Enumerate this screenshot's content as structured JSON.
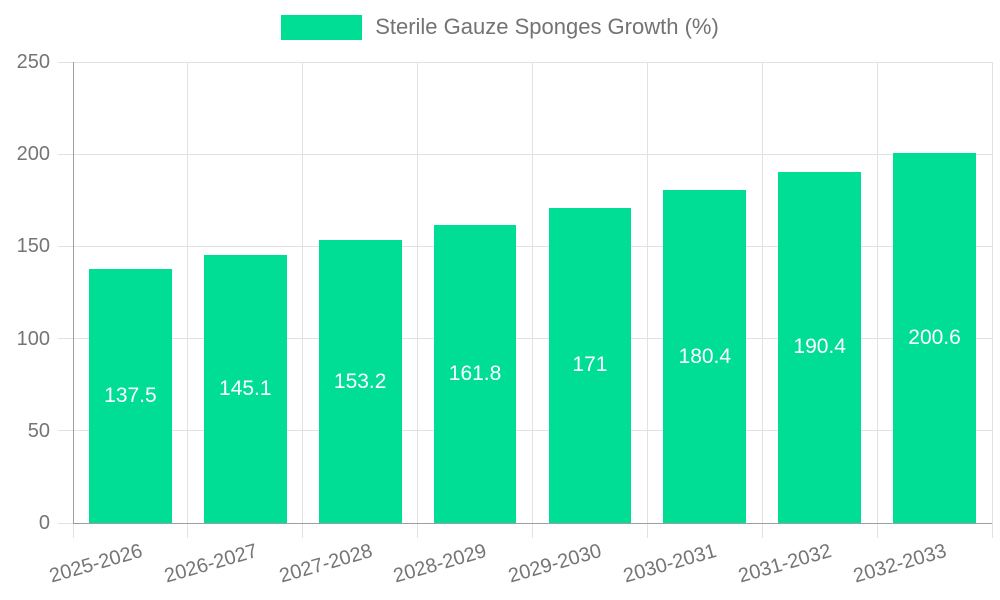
{
  "legend": {
    "label": "Sterile Gauze Sponges Growth (%)"
  },
  "chart_data": {
    "type": "bar",
    "title": "Sterile Gauze Sponges Growth (%)",
    "categories": [
      "2025-2026",
      "2026-2027",
      "2027-2028",
      "2028-2029",
      "2029-2030",
      "2030-2031",
      "2031-2032",
      "2032-2033"
    ],
    "values": [
      137.5,
      145.1,
      153.2,
      161.8,
      171,
      180.4,
      190.4,
      200.6
    ],
    "value_labels": [
      "137.5",
      "145.1",
      "153.2",
      "161.8",
      "171",
      "180.4",
      "190.4",
      "200.6"
    ],
    "series_name": "Sterile Gauze Sponges Growth (%)",
    "xlabel": "",
    "ylabel": "",
    "ylim": [
      0,
      250
    ],
    "ytick_interval": 50,
    "yticks": [
      "0",
      "50",
      "100",
      "150",
      "200",
      "250"
    ],
    "grid": true,
    "legend_position": "top-center",
    "x_label_rotation_deg": -16,
    "colors": {
      "bar": "#00DE96",
      "bar_value_text": "#ffffff",
      "axis_text": "#757575",
      "legend_text": "#737373",
      "axis_line": "#9e9e9e",
      "gridline": "#e2e2e2",
      "background": "#ffffff"
    }
  }
}
